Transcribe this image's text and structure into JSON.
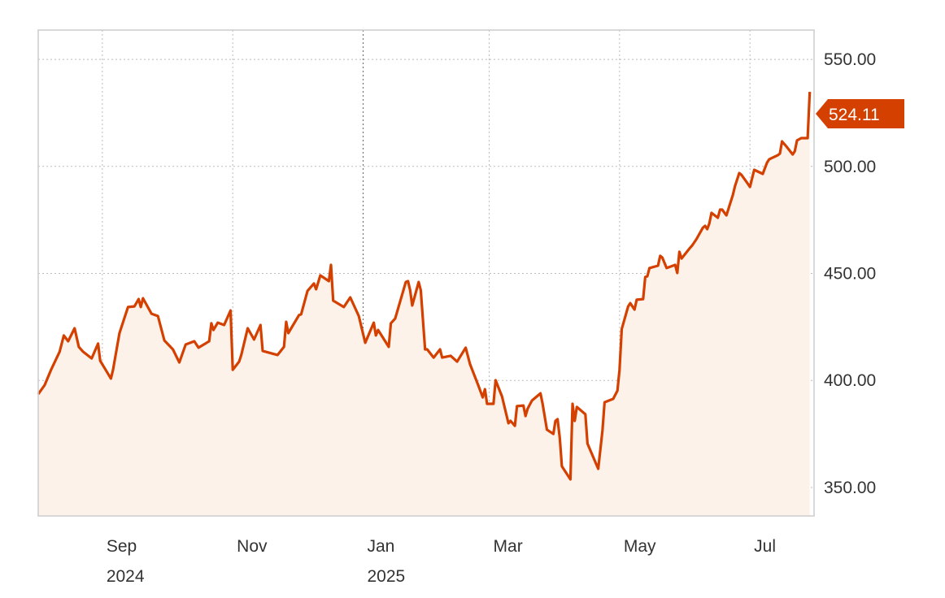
{
  "chart_data": {
    "type": "area",
    "title": "",
    "xlabel": "",
    "ylabel": "",
    "line_color": "#d44000",
    "fill_color": "#fdf2ea",
    "grid": true,
    "y_axis_position": "right",
    "xlim": [
      "2024-08-02",
      "2025-07-31"
    ],
    "ylim": [
      336.7,
      563.7
    ],
    "y_ticks": [
      {
        "value": 350,
        "label": "350.00"
      },
      {
        "value": 400,
        "label": "400.00"
      },
      {
        "value": 450,
        "label": "450.00"
      },
      {
        "value": 500,
        "label": "500.00"
      },
      {
        "value": 550,
        "label": "550.00"
      }
    ],
    "x_ticks": [
      {
        "date": "2024-09-01",
        "label": "Sep",
        "year": "2024"
      },
      {
        "date": "2024-11-01",
        "label": "Nov",
        "year": ""
      },
      {
        "date": "2025-01-01",
        "label": "Jan",
        "year": "2025"
      },
      {
        "date": "2025-03-01",
        "label": "Mar",
        "year": ""
      },
      {
        "date": "2025-05-01",
        "label": "May",
        "year": ""
      },
      {
        "date": "2025-07-01",
        "label": "Jul",
        "year": ""
      }
    ],
    "last_value_label": "524.11",
    "points": [
      [
        "2024-08-02",
        393.6
      ],
      [
        "2024-08-05",
        397.8
      ],
      [
        "2024-08-08",
        405.0
      ],
      [
        "2024-08-12",
        413.4
      ],
      [
        "2024-08-14",
        421.0
      ],
      [
        "2024-08-16",
        418.3
      ],
      [
        "2024-08-19",
        424.4
      ],
      [
        "2024-08-21",
        415.7
      ],
      [
        "2024-08-23",
        413.4
      ],
      [
        "2024-08-27",
        410.3
      ],
      [
        "2024-08-30",
        417.2
      ],
      [
        "2024-08-31",
        409.2
      ],
      [
        "2024-09-05",
        400.9
      ],
      [
        "2024-09-06",
        405.0
      ],
      [
        "2024-09-09",
        422.1
      ],
      [
        "2024-09-13",
        434.3
      ],
      [
        "2024-09-16",
        434.6
      ],
      [
        "2024-09-18",
        438.0
      ],
      [
        "2024-09-19",
        434.3
      ],
      [
        "2024-09-20",
        438.4
      ],
      [
        "2024-09-24",
        431.2
      ],
      [
        "2024-09-27",
        430.1
      ],
      [
        "2024-09-30",
        418.7
      ],
      [
        "2024-10-04",
        414.5
      ],
      [
        "2024-10-07",
        408.4
      ],
      [
        "2024-10-10",
        416.8
      ],
      [
        "2024-10-14",
        418.3
      ],
      [
        "2024-10-16",
        415.3
      ],
      [
        "2024-10-21",
        418.3
      ],
      [
        "2024-10-22",
        426.7
      ],
      [
        "2024-10-23",
        423.6
      ],
      [
        "2024-10-25",
        427.0
      ],
      [
        "2024-10-28",
        425.9
      ],
      [
        "2024-10-31",
        432.7
      ],
      [
        "2024-11-01",
        405.0
      ],
      [
        "2024-11-04",
        408.8
      ],
      [
        "2024-11-05",
        411.9
      ],
      [
        "2024-11-08",
        424.4
      ],
      [
        "2024-11-11",
        419.1
      ],
      [
        "2024-11-14",
        425.9
      ],
      [
        "2024-11-15",
        413.8
      ],
      [
        "2024-11-22",
        411.9
      ],
      [
        "2024-11-25",
        415.7
      ],
      [
        "2024-11-26",
        427.4
      ],
      [
        "2024-11-27",
        422.1
      ],
      [
        "2024-12-02",
        430.5
      ],
      [
        "2024-12-03",
        430.9
      ],
      [
        "2024-12-06",
        441.8
      ],
      [
        "2024-12-09",
        445.3
      ],
      [
        "2024-12-10",
        442.6
      ],
      [
        "2024-12-12",
        449.1
      ],
      [
        "2024-12-16",
        446.4
      ],
      [
        "2024-12-17",
        454.0
      ],
      [
        "2024-12-18",
        437.3
      ],
      [
        "2024-12-23",
        434.3
      ],
      [
        "2024-12-26",
        438.8
      ],
      [
        "2024-12-30",
        430.1
      ],
      [
        "2025-01-02",
        417.6
      ],
      [
        "2025-01-06",
        427.0
      ],
      [
        "2025-01-07",
        421.0
      ],
      [
        "2025-01-08",
        423.6
      ],
      [
        "2025-01-13",
        415.7
      ],
      [
        "2025-01-14",
        426.7
      ],
      [
        "2025-01-16",
        428.9
      ],
      [
        "2025-01-21",
        446.0
      ],
      [
        "2025-01-22",
        446.4
      ],
      [
        "2025-01-23",
        442.2
      ],
      [
        "2025-01-24",
        435.0
      ],
      [
        "2025-01-27",
        446.0
      ],
      [
        "2025-01-28",
        442.2
      ],
      [
        "2025-01-30",
        414.5
      ],
      [
        "2025-01-31",
        414.5
      ],
      [
        "2025-02-03",
        410.7
      ],
      [
        "2025-02-06",
        414.5
      ],
      [
        "2025-02-07",
        410.7
      ],
      [
        "2025-02-11",
        411.5
      ],
      [
        "2025-02-14",
        408.8
      ],
      [
        "2025-02-18",
        415.3
      ],
      [
        "2025-02-20",
        407.7
      ],
      [
        "2025-02-24",
        397.4
      ],
      [
        "2025-02-26",
        392.1
      ],
      [
        "2025-02-27",
        395.9
      ],
      [
        "2025-02-28",
        389.1
      ],
      [
        "2025-03-03",
        389.1
      ],
      [
        "2025-03-04",
        400.1
      ],
      [
        "2025-03-07",
        392.5
      ],
      [
        "2025-03-10",
        380.0
      ],
      [
        "2025-03-11",
        381.1
      ],
      [
        "2025-03-13",
        378.8
      ],
      [
        "2025-03-14",
        388.0
      ],
      [
        "2025-03-17",
        388.3
      ],
      [
        "2025-03-18",
        383.4
      ],
      [
        "2025-03-19",
        386.8
      ],
      [
        "2025-03-21",
        390.6
      ],
      [
        "2025-03-25",
        394.0
      ],
      [
        "2025-03-26",
        389.1
      ],
      [
        "2025-03-28",
        377.0
      ],
      [
        "2025-03-31",
        375.0
      ],
      [
        "2025-04-01",
        381.1
      ],
      [
        "2025-04-02",
        381.9
      ],
      [
        "2025-04-03",
        373.2
      ],
      [
        "2025-04-04",
        359.9
      ],
      [
        "2025-04-08",
        353.8
      ],
      [
        "2025-04-09",
        389.1
      ],
      [
        "2025-04-10",
        381.1
      ],
      [
        "2025-04-11",
        387.6
      ],
      [
        "2025-04-15",
        384.2
      ],
      [
        "2025-04-16",
        370.5
      ],
      [
        "2025-04-21",
        358.7
      ],
      [
        "2025-04-23",
        376.6
      ],
      [
        "2025-04-24",
        389.8
      ],
      [
        "2025-04-28",
        391.4
      ],
      [
        "2025-04-30",
        395.2
      ],
      [
        "2025-05-01",
        405.0
      ],
      [
        "2025-05-02",
        424.0
      ],
      [
        "2025-05-05",
        434.6
      ],
      [
        "2025-05-06",
        436.1
      ],
      [
        "2025-05-08",
        433.1
      ],
      [
        "2025-05-09",
        437.7
      ],
      [
        "2025-05-12",
        438.0
      ],
      [
        "2025-05-13",
        448.3
      ],
      [
        "2025-05-14",
        448.7
      ],
      [
        "2025-05-15",
        452.5
      ],
      [
        "2025-05-19",
        453.6
      ],
      [
        "2025-05-20",
        458.2
      ],
      [
        "2025-05-21",
        457.4
      ],
      [
        "2025-05-23",
        452.5
      ],
      [
        "2025-05-27",
        454.0
      ],
      [
        "2025-05-28",
        450.2
      ],
      [
        "2025-05-29",
        460.1
      ],
      [
        "2025-05-30",
        457.0
      ],
      [
        "2025-06-03",
        462.0
      ],
      [
        "2025-06-04",
        463.1
      ],
      [
        "2025-06-06",
        466.1
      ],
      [
        "2025-06-09",
        471.4
      ],
      [
        "2025-06-10",
        472.2
      ],
      [
        "2025-06-11",
        470.7
      ],
      [
        "2025-06-12",
        473.3
      ],
      [
        "2025-06-13",
        478.3
      ],
      [
        "2025-06-16",
        476.0
      ],
      [
        "2025-06-17",
        479.8
      ],
      [
        "2025-06-18",
        479.8
      ],
      [
        "2025-06-20",
        477.1
      ],
      [
        "2025-06-23",
        486.6
      ],
      [
        "2025-06-24",
        490.8
      ],
      [
        "2025-06-26",
        496.9
      ],
      [
        "2025-06-27",
        496.1
      ],
      [
        "2025-06-30",
        491.9
      ],
      [
        "2025-07-01",
        490.4
      ],
      [
        "2025-07-03",
        498.4
      ],
      [
        "2025-07-07",
        496.5
      ],
      [
        "2025-07-09",
        501.8
      ],
      [
        "2025-07-10",
        503.3
      ],
      [
        "2025-07-14",
        505.2
      ],
      [
        "2025-07-15",
        506.0
      ],
      [
        "2025-07-16",
        511.7
      ],
      [
        "2025-07-18",
        509.4
      ],
      [
        "2025-07-21",
        505.6
      ],
      [
        "2025-07-22",
        507.1
      ],
      [
        "2025-07-23",
        512.1
      ],
      [
        "2025-07-25",
        513.2
      ],
      [
        "2025-07-28",
        513.2
      ],
      [
        "2025-07-29",
        534.8
      ]
    ]
  }
}
